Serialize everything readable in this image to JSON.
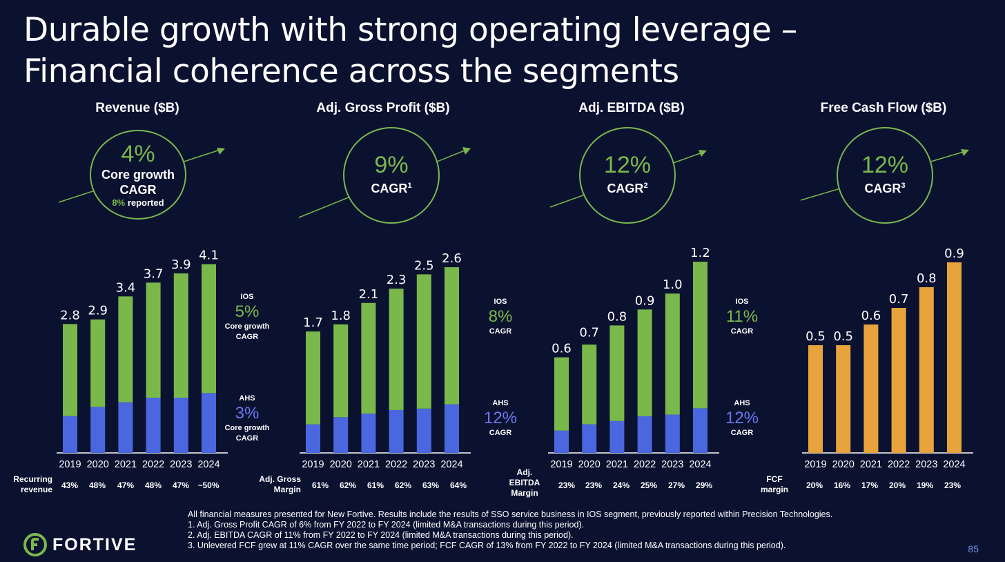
{
  "title": {
    "line1": "Durable growth with strong operating leverage –",
    "line2": "Financial coherence across the segments"
  },
  "colors": {
    "ios": "#7ab84c",
    "ahs": "#4a67e0",
    "fcf": "#e8a33d",
    "accent_green": "#7ab84c",
    "ahs_text": "#6b78ee",
    "background": "#0b1230"
  },
  "panels": {
    "revenue": {
      "title": "Revenue ($B)",
      "bubble": {
        "pct": "4%",
        "label_line1": "Core growth",
        "label_line2": "CAGR",
        "sub_green": "8%",
        "sub_white": " reported"
      },
      "ios_note": {
        "label": "IOS",
        "pct": "5%",
        "line1": "Core growth",
        "line2": "CAGR"
      },
      "ahs_note": {
        "label": "AHS",
        "pct": "3%",
        "line1": "Core growth",
        "line2": "CAGR"
      },
      "margin": {
        "label_line1": "Recurring",
        "label_line2": "revenue",
        "values": [
          "43%",
          "48%",
          "47%",
          "48%",
          "47%",
          "~50%"
        ]
      }
    },
    "gross_profit": {
      "title": "Adj. Gross Profit ($B)",
      "bubble": {
        "pct": "9%",
        "label": "CAGR",
        "sup": "1"
      },
      "ios_note": {
        "label": "IOS",
        "pct": "8%",
        "line1": "CAGR"
      },
      "ahs_note": {
        "label": "AHS",
        "pct": "12%",
        "line1": "CAGR"
      },
      "margin": {
        "label_line1": "Adj. Gross",
        "label_line2": "Margin",
        "values": [
          "61%",
          "62%",
          "61%",
          "62%",
          "63%",
          "64%"
        ]
      }
    },
    "ebitda": {
      "title": "Adj. EBITDA ($B)",
      "bubble": {
        "pct": "12%",
        "label": "CAGR",
        "sup": "2"
      },
      "ios_note": {
        "label": "IOS",
        "pct": "11%",
        "line1": "CAGR"
      },
      "ahs_note": {
        "label": "AHS",
        "pct": "12%",
        "line1": "CAGR"
      },
      "margin": {
        "label_line1": "Adj.",
        "label_line2": "EBITDA",
        "label_line3": "Margin",
        "values": [
          "23%",
          "23%",
          "24%",
          "25%",
          "27%",
          "29%"
        ]
      }
    },
    "fcf": {
      "title": "Free Cash Flow ($B)",
      "bubble": {
        "pct": "12%",
        "label": "CAGR",
        "sup": "3"
      },
      "margin": {
        "label_line1": "FCF",
        "label_line2": "margin",
        "values": [
          "20%",
          "16%",
          "17%",
          "20%",
          "19%",
          "23%"
        ]
      }
    }
  },
  "chart_data": [
    {
      "type": "bar",
      "stacked": true,
      "title": "Revenue ($B)",
      "categories": [
        "2019",
        "2020",
        "2021",
        "2022",
        "2023",
        "2024"
      ],
      "totals": [
        2.8,
        2.9,
        3.4,
        3.7,
        3.9,
        4.1
      ],
      "total_labels": [
        "2.8",
        "2.9",
        "3.4",
        "3.7",
        "3.9",
        "4.1"
      ],
      "series": [
        {
          "name": "AHS",
          "values": [
            0.8,
            1.0,
            1.1,
            1.2,
            1.2,
            1.3
          ]
        },
        {
          "name": "IOS",
          "values": [
            2.0,
            1.9,
            2.3,
            2.5,
            2.7,
            2.8
          ]
        }
      ],
      "ylim": [
        0,
        4.5
      ]
    },
    {
      "type": "bar",
      "stacked": true,
      "title": "Adj. Gross Profit ($B)",
      "categories": [
        "2019",
        "2020",
        "2021",
        "2022",
        "2023",
        "2024"
      ],
      "totals": [
        1.7,
        1.8,
        2.1,
        2.3,
        2.5,
        2.6
      ],
      "total_labels": [
        "1.7",
        "1.8",
        "2.1",
        "2.3",
        "2.5",
        "2.6"
      ],
      "series": [
        {
          "name": "AHS",
          "values": [
            0.4,
            0.5,
            0.55,
            0.6,
            0.62,
            0.68
          ]
        },
        {
          "name": "IOS",
          "values": [
            1.3,
            1.3,
            1.55,
            1.7,
            1.88,
            1.92
          ]
        }
      ],
      "ylim": [
        0,
        2.9
      ]
    },
    {
      "type": "bar",
      "stacked": true,
      "title": "Adj. EBITDA ($B)",
      "categories": [
        "2019",
        "2020",
        "2021",
        "2022",
        "2023",
        "2024"
      ],
      "totals": [
        0.6,
        0.7,
        0.8,
        0.9,
        1.0,
        1.2
      ],
      "total_labels": [
        "0.6",
        "0.7",
        "0.8",
        "0.9",
        "1.0",
        "1.2"
      ],
      "series": [
        {
          "name": "AHS",
          "values": [
            0.14,
            0.18,
            0.2,
            0.23,
            0.24,
            0.28
          ]
        },
        {
          "name": "IOS",
          "values": [
            0.46,
            0.5,
            0.6,
            0.67,
            0.76,
            0.92
          ]
        }
      ],
      "ylim": [
        0,
        1.3
      ]
    },
    {
      "type": "bar",
      "stacked": false,
      "title": "Free Cash Flow ($B)",
      "categories": [
        "2019",
        "2020",
        "2021",
        "2022",
        "2023",
        "2024"
      ],
      "totals": [
        0.52,
        0.52,
        0.62,
        0.7,
        0.8,
        0.92
      ],
      "total_labels": [
        "0.5",
        "0.5",
        "0.6",
        "0.7",
        "0.8",
        "0.9"
      ],
      "series": [
        {
          "values": [
            0.52,
            0.52,
            0.62,
            0.7,
            0.8,
            0.92
          ]
        }
      ],
      "ylim": [
        0,
        1.0
      ]
    }
  ],
  "footnotes": [
    "All financial measures presented for New Fortive. Results include the results of SSO service business in IOS segment, previously reported within Precision Technologies.",
    "1. Adj. Gross Profit CAGR of 6% from FY 2022 to FY 2024 (limited M&A transactions during this period).",
    "2. Adj. EBITDA CAGR of 11% from FY 2022 to FY 2024 (limited M&A transactions during this period).",
    "3. Unlevered FCF grew at 11% CAGR over the same time period; FCF CAGR of 13% from FY 2022 to FY 2024 (limited M&A transactions during this period)."
  ],
  "logo": {
    "text": "FORTIVE",
    "icon": "fortive-f-icon"
  },
  "page_number": "85"
}
